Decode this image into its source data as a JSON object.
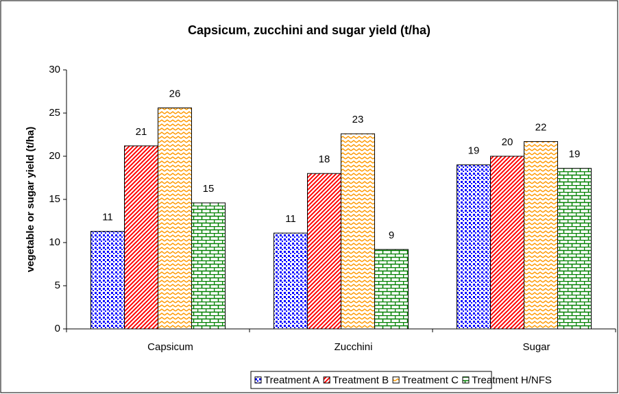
{
  "chart_data": {
    "type": "bar",
    "title": "Capsicum, zucchini and sugar yield (t/ha)",
    "y_label": "vegetable or sugar yield (t/ha)",
    "categories": [
      "Capsicum",
      "Zucchini",
      "Sugar"
    ],
    "series": [
      {
        "name": "Treatment A",
        "color": "#0000ff",
        "pattern": "dots",
        "values": [
          11.3,
          11.1,
          19.0
        ],
        "value_labels": [
          "11",
          "11",
          "19"
        ]
      },
      {
        "name": "Treatment B",
        "color": "#ff0000",
        "pattern": "diagonal",
        "values": [
          21.2,
          18.0,
          20.0
        ],
        "value_labels": [
          "21",
          "18",
          "20"
        ]
      },
      {
        "name": "Treatment C",
        "color": "#ff9900",
        "pattern": "zigzag",
        "values": [
          25.6,
          22.6,
          21.7
        ],
        "value_labels": [
          "26",
          "23",
          "22"
        ]
      },
      {
        "name": "Treatment H/NFS",
        "color": "#008000",
        "pattern": "bricks",
        "values": [
          14.6,
          9.2,
          18.6
        ],
        "value_labels": [
          "15",
          "9",
          "19"
        ]
      }
    ],
    "ylim": [
      0,
      30
    ],
    "yticks": [
      0,
      5,
      10,
      15,
      20,
      25,
      30
    ],
    "legend": "bottom"
  }
}
